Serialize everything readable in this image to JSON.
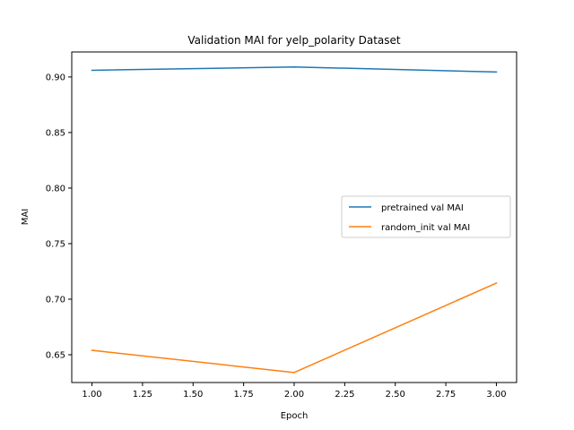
{
  "chart_data": {
    "type": "line",
    "title": "Validation MAI for yelp_polarity Dataset",
    "xlabel": "Epoch",
    "ylabel": "MAI",
    "xlim": [
      0.9,
      3.1
    ],
    "ylim": [
      0.625,
      0.9225
    ],
    "xticks": [
      1.0,
      1.25,
      1.5,
      1.75,
      2.0,
      2.25,
      2.5,
      2.75,
      3.0
    ],
    "xtick_labels": [
      "1.00",
      "1.25",
      "1.50",
      "1.75",
      "2.00",
      "2.25",
      "2.50",
      "2.75",
      "3.00"
    ],
    "yticks": [
      0.65,
      0.7,
      0.75,
      0.8,
      0.85,
      0.9
    ],
    "ytick_labels": [
      "0.65",
      "0.70",
      "0.75",
      "0.80",
      "0.85",
      "0.90"
    ],
    "grid": false,
    "legend_position": "center-right",
    "x": [
      1,
      2,
      3
    ],
    "series": [
      {
        "name": "pretrained val MAI",
        "color": "#1f77b4",
        "values": [
          0.906,
          0.909,
          0.9045
        ]
      },
      {
        "name": "random_init val MAI",
        "color": "#ff7f0e",
        "values": [
          0.654,
          0.634,
          0.7145
        ]
      }
    ]
  }
}
